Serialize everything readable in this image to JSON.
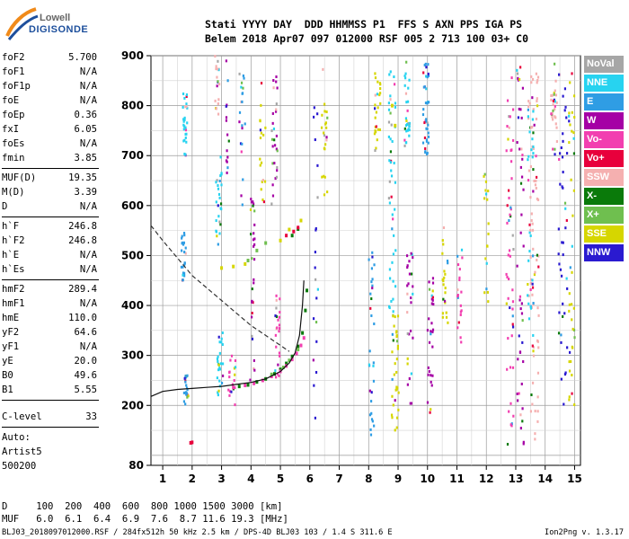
{
  "logo": {
    "top": "Lowell",
    "bottom": "DIGISONDE"
  },
  "header": {
    "row1": "Stati YYYY DAY  DDD HHMMSS P1  FFS S AXN PPS IGA PS",
    "row2": "Belem 2018 Apr07 097 012000 RSF 005 2 713 100 03+ C0"
  },
  "params": [
    {
      "label": "foF2",
      "value": "5.700"
    },
    {
      "label": "foF1",
      "value": "N/A"
    },
    {
      "label": "foF1p",
      "value": "N/A"
    },
    {
      "label": "foE",
      "value": "N/A"
    },
    {
      "label": "foEp",
      "value": "0.36"
    },
    {
      "label": "fxI",
      "value": "6.05"
    },
    {
      "label": "foEs",
      "value": "N/A"
    },
    {
      "label": "fmin",
      "value": "3.85"
    },
    {
      "label": "MUF(D)",
      "value": "19.35"
    },
    {
      "label": "M(D)",
      "value": "3.39"
    },
    {
      "label": "D",
      "value": "N/A"
    },
    {
      "label": "h`F",
      "value": "246.8"
    },
    {
      "label": "h`F2",
      "value": "246.8"
    },
    {
      "label": "h`E",
      "value": "N/A"
    },
    {
      "label": "h`Es",
      "value": "N/A"
    },
    {
      "label": "hmF2",
      "value": "289.4"
    },
    {
      "label": "hmF1",
      "value": "N/A"
    },
    {
      "label": "hmE",
      "value": "110.0"
    },
    {
      "label": "yF2",
      "value": "64.6"
    },
    {
      "label": "yF1",
      "value": "N/A"
    },
    {
      "label": "yE",
      "value": "20.0"
    },
    {
      "label": "B0",
      "value": "49.6"
    },
    {
      "label": "B1",
      "value": "5.55"
    },
    {
      "label": "C-level",
      "value": "33"
    }
  ],
  "autoscaling": {
    "line1": "Auto:",
    "line2": "Artist5",
    "line3": "500200"
  },
  "legend": [
    {
      "label": "NoVal",
      "color": "#a6a6a6"
    },
    {
      "label": "NNE",
      "color": "#27d3f0"
    },
    {
      "label": "E",
      "color": "#2f9de4"
    },
    {
      "label": "W",
      "color": "#a500a5"
    },
    {
      "label": "Vo-",
      "color": "#f23fb0"
    },
    {
      "label": "Vo+",
      "color": "#e8003c"
    },
    {
      "label": "SSW",
      "color": "#f5b0b0"
    },
    {
      "label": "X-",
      "color": "#0a7a0a"
    },
    {
      "label": "X+",
      "color": "#6fbf4f"
    },
    {
      "label": "SSE",
      "color": "#d6d600"
    },
    {
      "label": "NNW",
      "color": "#2a1ad0"
    }
  ],
  "muf_table": {
    "row_d": "D     100  200  400  600  800 1000 1500 3000 [km]",
    "row_muf": "MUF   6.0  6.1  6.4  6.9  7.6  8.7 11.6 19.3 [MHz]"
  },
  "footer": {
    "left": "BLJ03_2018097012000.RSF / 284fx512h 50 kHz 2.5 km / DPS-4D BLJ03 103 / 1.4 S 311.6 E",
    "right": "Ion2Png v. 1.3.17"
  },
  "chart_data": {
    "type": "scatter",
    "title": "",
    "xlabel": "",
    "ylabel": "",
    "xlim": [
      0.6,
      15.2
    ],
    "ylim": [
      80,
      900
    ],
    "x_ticks": [
      1,
      2,
      3,
      4,
      5,
      6,
      7,
      8,
      9,
      10,
      11,
      12,
      13,
      14,
      15
    ],
    "y_ticks": [
      80,
      200,
      300,
      400,
      500,
      600,
      700,
      800,
      900
    ],
    "series": [
      {
        "name": "X-",
        "color": "#0a7a0a",
        "points": [
          [
            3.6,
            238
          ],
          [
            3.9,
            241
          ],
          [
            4.2,
            247
          ],
          [
            4.5,
            253
          ],
          [
            4.8,
            263
          ],
          [
            5.0,
            272
          ],
          [
            5.2,
            284
          ],
          [
            5.4,
            298
          ],
          [
            5.6,
            318
          ],
          [
            5.75,
            345
          ],
          [
            5.85,
            390
          ],
          [
            5.9,
            430
          ],
          [
            5.4,
            540
          ],
          [
            5.6,
            553
          ]
        ]
      },
      {
        "name": "Vo-",
        "color": "#f23fb0",
        "points": [
          [
            3.4,
            236
          ],
          [
            3.8,
            240
          ],
          [
            4.1,
            244
          ],
          [
            4.4,
            250
          ],
          [
            4.7,
            258
          ],
          [
            5.0,
            268
          ],
          [
            5.2,
            279
          ],
          [
            5.4,
            292
          ],
          [
            5.55,
            304
          ],
          [
            5.7,
            320
          ],
          [
            5.8,
            335
          ]
        ]
      },
      {
        "name": "X+",
        "color": "#6fbf4f",
        "points": [
          [
            4.7,
            262
          ],
          [
            5.1,
            276
          ],
          [
            5.3,
            290
          ],
          [
            5.6,
            312
          ],
          [
            3.9,
            490
          ],
          [
            4.2,
            510
          ],
          [
            4.5,
            525
          ]
        ]
      },
      {
        "name": "SSE",
        "color": "#d6d600",
        "points": [
          [
            3.0,
            475
          ],
          [
            3.4,
            478
          ],
          [
            3.8,
            483
          ],
          [
            5.0,
            530
          ],
          [
            5.3,
            552
          ],
          [
            5.7,
            570
          ],
          [
            8.8,
            800
          ],
          [
            8.9,
            760
          ]
        ]
      },
      {
        "name": "Vo+",
        "color": "#e8003c",
        "points": [
          [
            1.95,
            125
          ],
          [
            2.0,
            126
          ],
          [
            5.2,
            540
          ],
          [
            5.45,
            548
          ],
          [
            5.6,
            556
          ]
        ]
      }
    ],
    "curves": [
      {
        "name": "o-trace",
        "style": "solid",
        "x": [
          0.6,
          1.0,
          1.5,
          2.0,
          2.5,
          3.0,
          3.5,
          4.0,
          4.5,
          5.0,
          5.3,
          5.5,
          5.65,
          5.75,
          5.8
        ],
        "y": [
          218,
          228,
          232,
          234,
          236,
          238,
          242,
          246,
          253,
          268,
          285,
          305,
          340,
          400,
          450
        ]
      },
      {
        "name": "x-trace",
        "style": "dashed",
        "x": [
          0.6,
          1.0,
          1.5,
          2.0,
          2.5,
          3.0,
          3.5,
          4.0,
          4.5,
          5.0,
          5.3
        ],
        "y": [
          560,
          530,
          495,
          460,
          435,
          410,
          385,
          360,
          340,
          320,
          308
        ]
      }
    ]
  }
}
